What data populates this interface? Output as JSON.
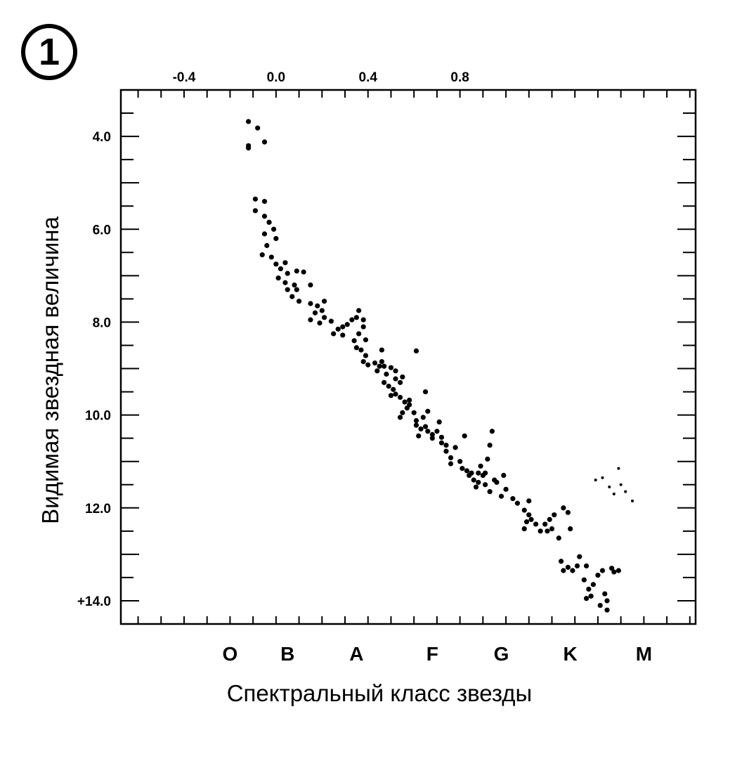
{
  "figure": {
    "number": "1"
  },
  "chart_data": {
    "type": "scatter",
    "title": "",
    "xlabel": "Спектральный класс звезды",
    "ylabel": "Видимая звездная величина",
    "top_axis": {
      "ticklabels": [
        "-0.4",
        "0.0",
        "0.4",
        "0.8"
      ],
      "values": [
        -0.4,
        0.0,
        0.4,
        0.8
      ],
      "xlim": [
        -0.675,
        1.825
      ]
    },
    "y_axis": {
      "ticklabels": [
        "4.0",
        "6.0",
        "8.0",
        "10.0",
        "12.0",
        "+14.0"
      ],
      "values": [
        4,
        6,
        8,
        10,
        12,
        14
      ],
      "ylim": [
        3,
        14.5
      ],
      "inverted": true
    },
    "spectral_classes": [
      {
        "label": "O",
        "x": -0.2
      },
      {
        "label": "B",
        "x": 0.05
      },
      {
        "label": "A",
        "x": 0.35
      },
      {
        "label": "F",
        "x": 0.68
      },
      {
        "label": "G",
        "x": 0.98
      },
      {
        "label": "K",
        "x": 1.28
      },
      {
        "label": "M",
        "x": 1.6
      }
    ],
    "grid": false,
    "series": [
      {
        "values_xy": [
          [
            -0.12,
            3.68
          ],
          [
            -0.08,
            3.82
          ],
          [
            -0.05,
            4.12
          ],
          [
            -0.12,
            4.25
          ],
          [
            -0.12,
            4.2
          ],
          [
            -0.09,
            5.35
          ],
          [
            -0.05,
            5.4
          ],
          [
            -0.09,
            5.6
          ],
          [
            -0.05,
            5.72
          ],
          [
            -0.03,
            5.85
          ],
          [
            -0.01,
            6.0
          ],
          [
            -0.05,
            6.1
          ],
          [
            0.0,
            6.2
          ],
          [
            -0.04,
            6.35
          ],
          [
            -0.06,
            6.55
          ],
          [
            -0.02,
            6.6
          ],
          [
            0.0,
            6.75
          ],
          [
            0.04,
            6.72
          ],
          [
            0.02,
            6.85
          ],
          [
            0.05,
            6.95
          ],
          [
            0.09,
            6.9
          ],
          [
            0.12,
            6.92
          ],
          [
            0.01,
            7.05
          ],
          [
            0.04,
            7.15
          ],
          [
            0.08,
            7.2
          ],
          [
            0.05,
            7.3
          ],
          [
            0.07,
            7.45
          ],
          [
            0.09,
            7.3
          ],
          [
            0.15,
            7.2
          ],
          [
            0.1,
            7.55
          ],
          [
            0.15,
            7.6
          ],
          [
            0.18,
            7.65
          ],
          [
            0.2,
            7.75
          ],
          [
            0.21,
            7.55
          ],
          [
            0.17,
            7.8
          ],
          [
            0.15,
            7.95
          ],
          [
            0.19,
            8.02
          ],
          [
            0.24,
            7.98
          ],
          [
            0.21,
            7.9
          ],
          [
            0.27,
            8.15
          ],
          [
            0.29,
            8.1
          ],
          [
            0.31,
            8.05
          ],
          [
            0.29,
            8.28
          ],
          [
            0.25,
            8.25
          ],
          [
            0.33,
            7.95
          ],
          [
            0.35,
            7.9
          ],
          [
            0.36,
            7.75
          ],
          [
            0.38,
            7.95
          ],
          [
            0.38,
            8.1
          ],
          [
            0.36,
            8.25
          ],
          [
            0.39,
            8.38
          ],
          [
            0.34,
            8.4
          ],
          [
            0.35,
            8.55
          ],
          [
            0.37,
            8.6
          ],
          [
            0.39,
            8.72
          ],
          [
            0.4,
            8.92
          ],
          [
            0.38,
            8.85
          ],
          [
            0.43,
            8.88
          ],
          [
            0.45,
            8.95
          ],
          [
            0.46,
            8.85
          ],
          [
            0.47,
            8.95
          ],
          [
            0.44,
            9.05
          ],
          [
            0.46,
            8.6
          ],
          [
            0.5,
            8.98
          ],
          [
            0.52,
            9.05
          ],
          [
            0.48,
            9.12
          ],
          [
            0.47,
            9.3
          ],
          [
            0.49,
            9.38
          ],
          [
            0.51,
            9.45
          ],
          [
            0.52,
            9.22
          ],
          [
            0.54,
            9.3
          ],
          [
            0.55,
            9.18
          ],
          [
            0.5,
            9.58
          ],
          [
            0.52,
            9.55
          ],
          [
            0.54,
            9.62
          ],
          [
            0.56,
            9.72
          ],
          [
            0.58,
            9.68
          ],
          [
            0.57,
            9.85
          ],
          [
            0.55,
            9.95
          ],
          [
            0.54,
            10.05
          ],
          [
            0.6,
            9.95
          ],
          [
            0.58,
            9.78
          ],
          [
            0.61,
            10.12
          ],
          [
            0.61,
            10.22
          ],
          [
            0.63,
            10.3
          ],
          [
            0.62,
            10.45
          ],
          [
            0.65,
            10.25
          ],
          [
            0.64,
            10.05
          ],
          [
            0.66,
            9.92
          ],
          [
            0.65,
            9.5
          ],
          [
            0.61,
            8.62
          ],
          [
            0.66,
            10.35
          ],
          [
            0.68,
            10.42
          ],
          [
            0.68,
            10.5
          ],
          [
            0.7,
            10.35
          ],
          [
            0.72,
            10.6
          ],
          [
            0.74,
            10.65
          ],
          [
            0.72,
            10.48
          ],
          [
            0.71,
            10.15
          ],
          [
            0.74,
            10.78
          ],
          [
            0.76,
            10.92
          ],
          [
            0.78,
            10.7
          ],
          [
            0.76,
            11.05
          ],
          [
            0.8,
            11.0
          ],
          [
            0.82,
            10.45
          ],
          [
            0.81,
            11.15
          ],
          [
            0.85,
            11.25
          ],
          [
            0.83,
            11.2
          ],
          [
            0.84,
            11.3
          ],
          [
            0.86,
            11.4
          ],
          [
            0.88,
            11.45
          ],
          [
            0.87,
            11.55
          ],
          [
            0.9,
            11.3
          ],
          [
            0.88,
            11.25
          ],
          [
            0.89,
            11.1
          ],
          [
            0.91,
            11.5
          ],
          [
            0.93,
            11.65
          ],
          [
            0.92,
            10.95
          ],
          [
            0.93,
            10.65
          ],
          [
            0.94,
            10.35
          ],
          [
            0.91,
            11.25
          ],
          [
            0.95,
            11.4
          ],
          [
            0.96,
            11.45
          ],
          [
            0.98,
            11.75
          ],
          [
            1.0,
            11.6
          ],
          [
            0.99,
            11.3
          ],
          [
            1.03,
            11.8
          ],
          [
            1.05,
            11.9
          ],
          [
            1.08,
            12.05
          ],
          [
            1.1,
            12.15
          ],
          [
            1.1,
            11.85
          ],
          [
            1.09,
            12.3
          ],
          [
            1.08,
            12.45
          ],
          [
            1.11,
            12.25
          ],
          [
            1.13,
            12.35
          ],
          [
            1.15,
            12.5
          ],
          [
            1.17,
            12.35
          ],
          [
            1.19,
            12.25
          ],
          [
            1.2,
            12.45
          ],
          [
            1.23,
            12.65
          ],
          [
            1.18,
            12.5
          ],
          [
            1.21,
            12.15
          ],
          [
            1.25,
            12.0
          ],
          [
            1.27,
            12.1
          ],
          [
            1.28,
            12.45
          ],
          [
            1.24,
            13.15
          ],
          [
            1.25,
            13.35
          ],
          [
            1.27,
            13.28
          ],
          [
            1.29,
            13.35
          ],
          [
            1.31,
            13.25
          ],
          [
            1.32,
            13.05
          ],
          [
            1.35,
            13.25
          ],
          [
            1.34,
            13.55
          ],
          [
            1.36,
            13.75
          ],
          [
            1.38,
            13.65
          ],
          [
            1.37,
            13.9
          ],
          [
            1.35,
            13.95
          ],
          [
            1.4,
            13.45
          ],
          [
            1.42,
            13.35
          ],
          [
            1.43,
            13.85
          ],
          [
            1.44,
            14.0
          ],
          [
            1.44,
            14.2
          ],
          [
            1.41,
            14.1
          ],
          [
            1.46,
            13.3
          ],
          [
            1.47,
            13.38
          ],
          [
            1.49,
            13.35
          ],
          [
            1.39,
            11.4
          ],
          [
            1.42,
            11.35
          ],
          [
            1.45,
            11.55
          ],
          [
            1.47,
            11.7
          ],
          [
            1.49,
            11.15
          ],
          [
            1.5,
            11.5
          ],
          [
            1.52,
            11.65
          ],
          [
            1.55,
            11.85
          ]
        ]
      }
    ]
  }
}
